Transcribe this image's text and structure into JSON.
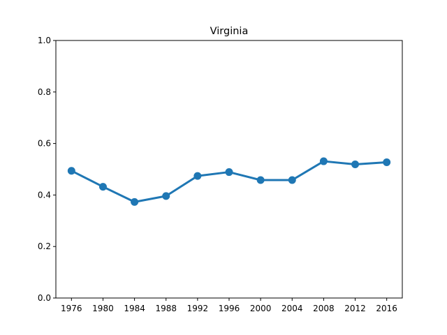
{
  "chart_data": {
    "type": "line",
    "title": "Virginia",
    "xlabel": "",
    "ylabel": "",
    "categories": [
      "1976",
      "1980",
      "1984",
      "1988",
      "1992",
      "1996",
      "2000",
      "2004",
      "2008",
      "2012",
      "2016"
    ],
    "series": [
      {
        "values": [
          0.494,
          0.432,
          0.373,
          0.396,
          0.474,
          0.489,
          0.458,
          0.458,
          0.531,
          0.519,
          0.527
        ],
        "color": "#1f77b4"
      }
    ],
    "ylim": [
      0,
      1.0
    ],
    "yticks": [
      "0.0",
      "0.2",
      "0.4",
      "0.6",
      "0.8",
      "1.0"
    ],
    "grid": false,
    "legend": "none"
  }
}
